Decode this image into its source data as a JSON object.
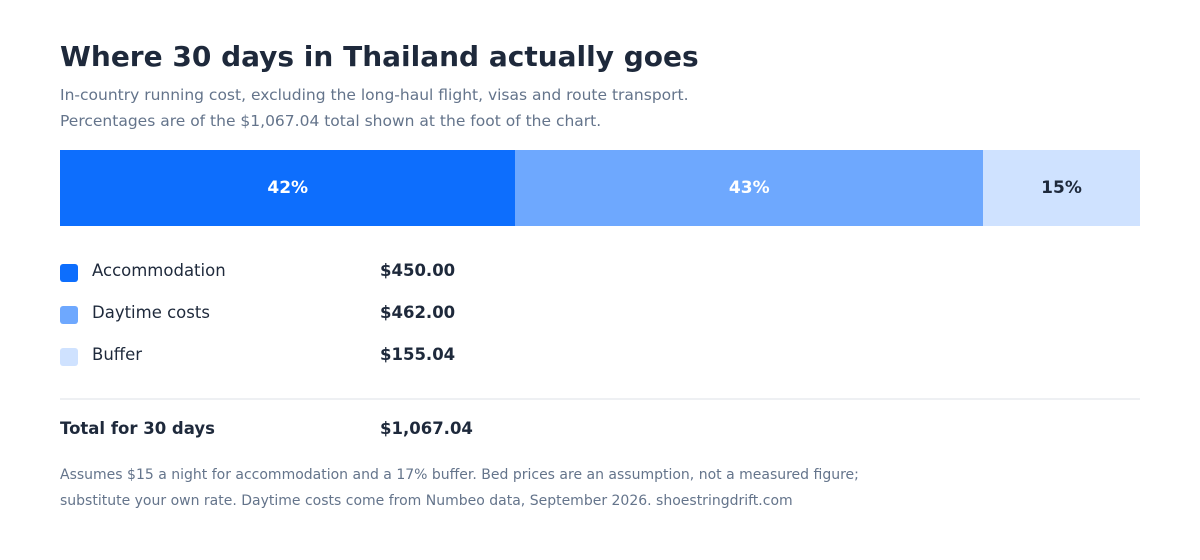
{
  "chart_data": {
    "type": "stacked-bar",
    "orientation": "horizontal",
    "title": "Where 30 days in Thailand actually goes",
    "subtitle": [
      "In-country running cost, excluding the long-haul flight, visas and route transport.",
      "Percentages are of the $1,067.04 total shown at the foot of the chart."
    ],
    "series": [
      {
        "name": "Accommodation",
        "color": "#0d6efd",
        "label_color": "#ffffff",
        "values": [
          450
        ],
        "value_labels": [
          "$450.00"
        ],
        "share_label": "42%"
      },
      {
        "name": "Daytime costs",
        "color": "#6ea8fe",
        "label_color": "#ffffff",
        "values": [
          462
        ],
        "value_labels": [
          "$462.00"
        ],
        "share_label": "43%"
      },
      {
        "name": "Buffer",
        "color": "#cfe2ff",
        "label_color": "#1e293b",
        "values": [
          155.04
        ],
        "value_labels": [
          "$155.04"
        ],
        "share_label": "15%"
      }
    ],
    "total_name": "Total for 30 days",
    "total": 1067.04,
    "total_label": "$1,067.04",
    "note": [
      "Assumes $15 a night for accommodation and a 17% buffer. Bed prices are an assumption, not a measured figure;",
      "substitute your own rate. Daytime costs come from Numbeo data, September 2026. shoestringdrift.com"
    ]
  }
}
